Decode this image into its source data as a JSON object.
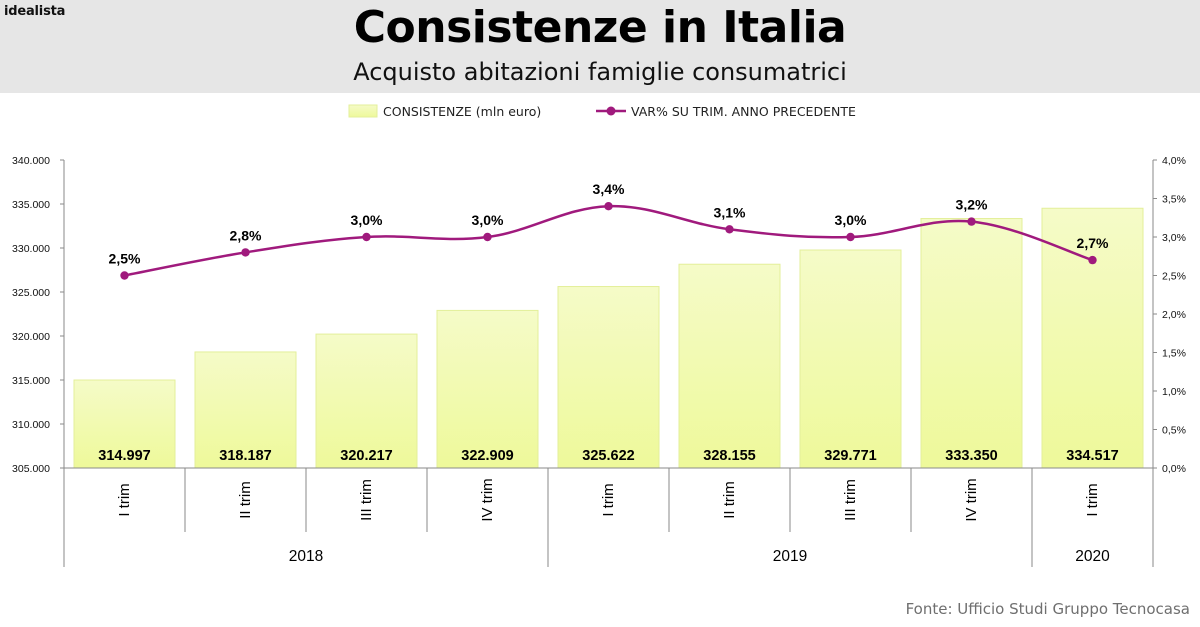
{
  "brand": "idealista",
  "title": "Consistenze in Italia",
  "subtitle": "Acquisto abitazioni famiglie consumatrici",
  "source": "Fonte: Ufficio Studi Gruppo Tecnocasa",
  "colors": {
    "bar_fill_top": "#f5fbc8",
    "bar_fill_bottom": "#eef99a",
    "bar_stroke": "#e3ef9a",
    "line": "#a01a7d",
    "header_bg": "#e6e6e6"
  },
  "chart_data": {
    "type": "bar",
    "categories": [
      "I trim",
      "II trim",
      "III trim",
      "IV trim",
      "I trim",
      "II trim",
      "III trim",
      "IV trim",
      "I trim"
    ],
    "year_groups": [
      {
        "label": "2018",
        "span": 4
      },
      {
        "label": "2019",
        "span": 4
      },
      {
        "label": "2020",
        "span": 1
      }
    ],
    "series": [
      {
        "name": "CONSISTENZE (mln euro)",
        "type": "bar",
        "axis": "left",
        "values": [
          314997,
          318187,
          320217,
          322909,
          325622,
          328155,
          329771,
          333350,
          334517
        ],
        "labels": [
          "314.997",
          "318.187",
          "320.217",
          "322.909",
          "325.622",
          "328.155",
          "329.771",
          "333.350",
          "334.517"
        ]
      },
      {
        "name": "VAR% SU TRIM. ANNO PRECEDENTE",
        "type": "line",
        "axis": "right",
        "values": [
          2.5,
          2.8,
          3.0,
          3.0,
          3.4,
          3.1,
          3.0,
          3.2,
          2.7
        ],
        "labels": [
          "2,5%",
          "2,8%",
          "3,0%",
          "3,0%",
          "3,4%",
          "3,1%",
          "3,0%",
          "3,2%",
          "2,7%"
        ]
      }
    ],
    "ylim": [
      305000,
      340000
    ],
    "y_ticks": [
      "305.000",
      "310.000",
      "315.000",
      "320.000",
      "325.000",
      "330.000",
      "335.000",
      "340.000"
    ],
    "y2lim": [
      0,
      4
    ],
    "y2_ticks": [
      "0,0%",
      "0,5%",
      "1,0%",
      "1,5%",
      "2,0%",
      "2,5%",
      "3,0%",
      "3,5%",
      "4,0%"
    ],
    "legend_position": "top-center",
    "grid": false
  }
}
